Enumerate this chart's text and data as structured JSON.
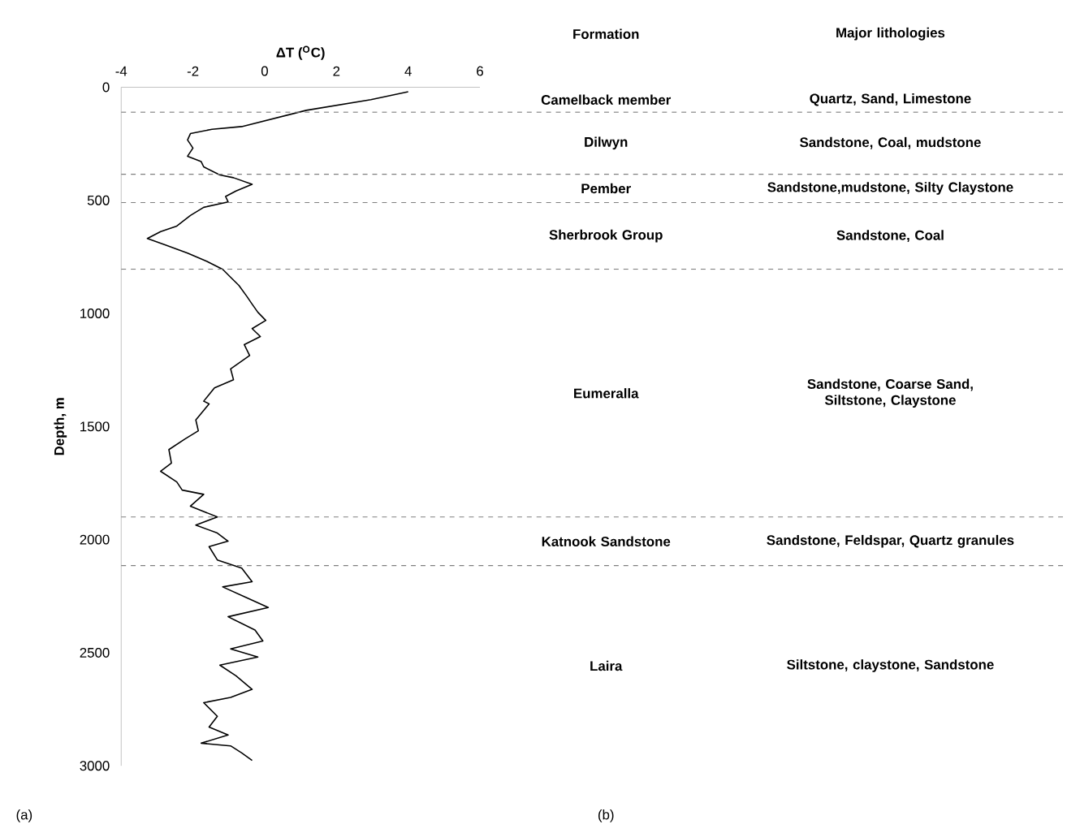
{
  "chart_data": {
    "type": "line",
    "xlabel": "ΔT ($^{O}$C)",
    "ylabel": "Depth, m",
    "xlim": [
      -4,
      6
    ],
    "xticks": [
      -4,
      -2,
      0,
      2,
      4,
      6
    ],
    "ylim": [
      3000,
      0
    ],
    "yticks": [
      0,
      500,
      1000,
      1500,
      2000,
      2500,
      3000
    ],
    "grid": false,
    "marker": "none",
    "line_style": "solid",
    "series": [
      {
        "color": "#000000",
        "x": [
          4.0,
          2.96,
          1.16,
          -0.64,
          -1.47,
          -2.07,
          -2.15,
          -2.0,
          -2.15,
          -1.77,
          -1.7,
          -1.25,
          -0.87,
          -0.35,
          -0.8,
          -1.09,
          -1.02,
          -1.7,
          -2.07,
          -2.45,
          -2.9,
          -3.27,
          -2.75,
          -2.15,
          -1.62,
          -1.17,
          -0.95,
          -0.72,
          -0.5,
          -0.35,
          -0.19,
          0.03,
          -0.35,
          -0.12,
          -0.57,
          -0.42,
          -0.95,
          -0.87,
          -1.4,
          -1.7,
          -1.55,
          -1.92,
          -1.85,
          -2.22,
          -2.67,
          -2.6,
          -2.9,
          -2.45,
          -2.3,
          -1.7,
          -2.07,
          -1.32,
          -1.92,
          -1.32,
          -1.02,
          -1.55,
          -1.32,
          -0.64,
          -0.35,
          -1.17,
          -0.5,
          0.1,
          -1.02,
          -0.27,
          -0.05,
          -0.95,
          -0.19,
          -1.25,
          -0.8,
          -0.35,
          -0.95,
          -1.7,
          -1.32,
          -1.55,
          -1.02,
          -1.77,
          -0.95,
          -0.64,
          -0.35
        ],
        "values": [
          20,
          55,
          102,
          174,
          186,
          205,
          233,
          269,
          305,
          329,
          352,
          388,
          400,
          429,
          459,
          483,
          507,
          531,
          567,
          614,
          638,
          669,
          698,
          733,
          769,
          805,
          840,
          876,
          924,
          959,
          995,
          1031,
          1067,
          1102,
          1138,
          1186,
          1245,
          1293,
          1329,
          1388,
          1400,
          1471,
          1519,
          1555,
          1602,
          1662,
          1698,
          1745,
          1781,
          1800,
          1852,
          1900,
          1936,
          1971,
          2007,
          2031,
          2090,
          2126,
          2186,
          2209,
          2257,
          2300,
          2341,
          2400,
          2448,
          2483,
          2519,
          2555,
          2602,
          2662,
          2698,
          2721,
          2781,
          2829,
          2864,
          2900,
          2912,
          2943,
          2976
        ]
      }
    ],
    "ref_lines": [
      {
        "axis": "y",
        "value": 110,
        "color": "#7f7f7f",
        "line_style": "dashed"
      },
      {
        "axis": "y",
        "value": 385,
        "color": "#7f7f7f",
        "line_style": "dashed"
      },
      {
        "axis": "y",
        "value": 510,
        "color": "#7f7f7f",
        "line_style": "dashed"
      },
      {
        "axis": "y",
        "value": 805,
        "color": "#7f7f7f",
        "line_style": "dashed"
      },
      {
        "axis": "y",
        "value": 1900,
        "color": "#7f7f7f",
        "line_style": "dashed"
      },
      {
        "axis": "y",
        "value": 2115,
        "color": "#7f7f7f",
        "line_style": "dashed"
      }
    ],
    "annotations": [
      "Formation",
      "Major lithologies",
      "Camelback member",
      "Quartz, Sand, Limestone",
      "Dilwyn",
      "Sandstone, Coal, mudstone",
      "Pember",
      "Sandstone,mudstone, Silty Claystone",
      "Sherbrook Group",
      "Sandstone, Coal",
      "Eumeralla",
      "Sandstone, Coarse Sand, Siltstone, Claystone",
      "Katnook Sandstone",
      "Sandstone, Feldspar, Quartz granules",
      "Laira",
      "Siltstone, claystone, Sandstone",
      "(a)",
      "(b)"
    ]
  }
}
